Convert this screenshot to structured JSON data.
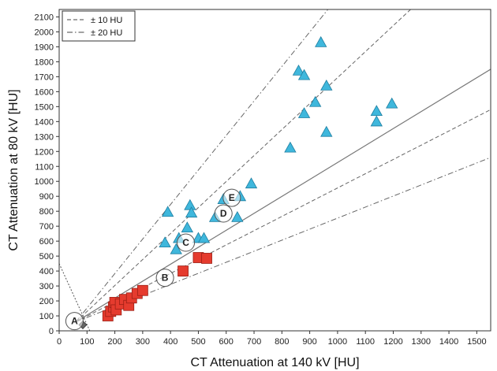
{
  "chart_data": {
    "type": "scatter",
    "title": "",
    "xlabel": "CT Attenuation at 140 kV [HU]",
    "ylabel": "CT Attenuation at 80 kV [HU]",
    "xlim": [
      0,
      1550
    ],
    "ylim": [
      0,
      2150
    ],
    "xticks": [
      0,
      100,
      200,
      300,
      400,
      500,
      600,
      700,
      800,
      900,
      1000,
      1100,
      1200,
      1300,
      1400,
      1500
    ],
    "yticks": [
      0,
      100,
      200,
      300,
      400,
      500,
      600,
      700,
      800,
      900,
      1000,
      1100,
      1200,
      1300,
      1400,
      1500,
      1600,
      1700,
      1800,
      1900,
      2000,
      2100
    ],
    "grid": false,
    "legend_position": "top-left",
    "legend": [
      {
        "label": "± 10 HU",
        "style": "dashed"
      },
      {
        "label": "± 20 HU",
        "style": "dash-dot"
      }
    ],
    "series": [
      {
        "marker": "triangle",
        "color": "#3fb7dc",
        "points": [
          [
            380,
            590
          ],
          [
            390,
            795
          ],
          [
            420,
            545
          ],
          [
            430,
            620
          ],
          [
            460,
            690
          ],
          [
            470,
            840
          ],
          [
            475,
            790
          ],
          [
            500,
            620
          ],
          [
            520,
            620
          ],
          [
            560,
            760
          ],
          [
            590,
            880
          ],
          [
            640,
            760
          ],
          [
            650,
            900
          ],
          [
            690,
            985
          ],
          [
            830,
            1225
          ],
          [
            860,
            1740
          ],
          [
            880,
            1710
          ],
          [
            880,
            1455
          ],
          [
            920,
            1530
          ],
          [
            940,
            1930
          ],
          [
            960,
            1640
          ],
          [
            960,
            1330
          ],
          [
            1140,
            1470
          ],
          [
            1140,
            1400
          ],
          [
            1195,
            1520
          ]
        ]
      },
      {
        "marker": "square",
        "color": "#e53b2e",
        "points": [
          [
            175,
            100
          ],
          [
            185,
            130
          ],
          [
            195,
            160
          ],
          [
            200,
            190
          ],
          [
            205,
            140
          ],
          [
            220,
            180
          ],
          [
            235,
            210
          ],
          [
            250,
            170
          ],
          [
            260,
            220
          ],
          [
            280,
            250
          ],
          [
            300,
            270
          ],
          [
            445,
            400
          ],
          [
            500,
            490
          ],
          [
            530,
            485
          ]
        ]
      },
      {
        "marker": "diamond",
        "color": "#666666",
        "points": [
          [
            85,
            40
          ]
        ]
      }
    ],
    "reference_lines": [
      {
        "style": "solid",
        "points": [
          [
            60,
            60
          ],
          [
            1550,
            1750
          ]
        ]
      },
      {
        "style": "dashed",
        "points": [
          [
            60,
            60
          ],
          [
            1550,
            2650
          ]
        ]
      },
      {
        "style": "dashed",
        "points": [
          [
            60,
            60
          ],
          [
            1550,
            1480
          ]
        ]
      },
      {
        "style": "dash-dot",
        "points": [
          [
            60,
            60
          ],
          [
            1550,
            3500
          ]
        ]
      },
      {
        "style": "dash-dot",
        "points": [
          [
            60,
            60
          ],
          [
            1550,
            1160
          ]
        ]
      },
      {
        "style": "dotted",
        "points": [
          [
            0,
            450
          ],
          [
            110,
            0
          ]
        ]
      }
    ],
    "annotations": [
      {
        "label": "A",
        "x": 55,
        "y": 65
      },
      {
        "label": "B",
        "x": 380,
        "y": 355
      },
      {
        "label": "C",
        "x": 455,
        "y": 590
      },
      {
        "label": "D",
        "x": 590,
        "y": 785
      },
      {
        "label": "E",
        "x": 620,
        "y": 890
      }
    ]
  }
}
